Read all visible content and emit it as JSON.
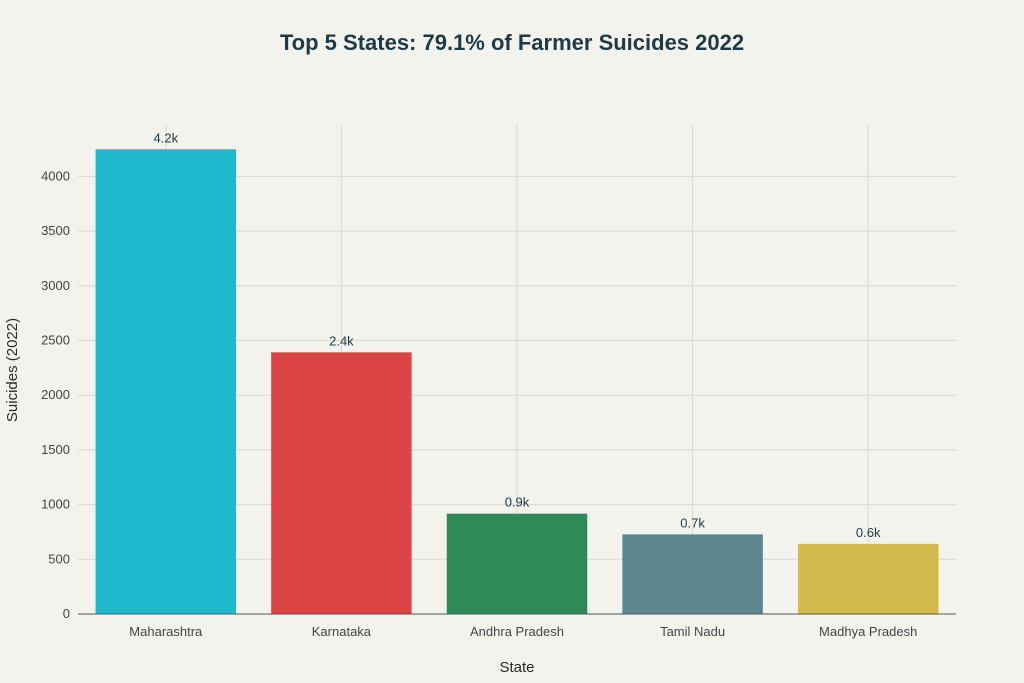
{
  "chart_data": {
    "type": "bar",
    "title": "Top 5 States: 79.1% of Farmer Suicides 2022",
    "xlabel": "State",
    "ylabel": "Suicides (2022)",
    "categories": [
      "Maharashtra",
      "Karnataka",
      "Andhra Pradesh",
      "Tamil Nadu",
      "Madhya Pradesh"
    ],
    "values": [
      4248,
      2392,
      917,
      728,
      641
    ],
    "data_labels": [
      "4.2k",
      "2.4k",
      "0.9k",
      "0.7k",
      "0.6k"
    ],
    "colors": [
      "#1fb8cd",
      "#db4545",
      "#2e8b57",
      "#5d878f",
      "#d2ba4c"
    ],
    "ylim": [
      0,
      4470
    ],
    "yticks": [
      0,
      500,
      1000,
      1500,
      2000,
      2500,
      3000,
      3500,
      4000
    ],
    "grid": true,
    "legend": "none"
  }
}
